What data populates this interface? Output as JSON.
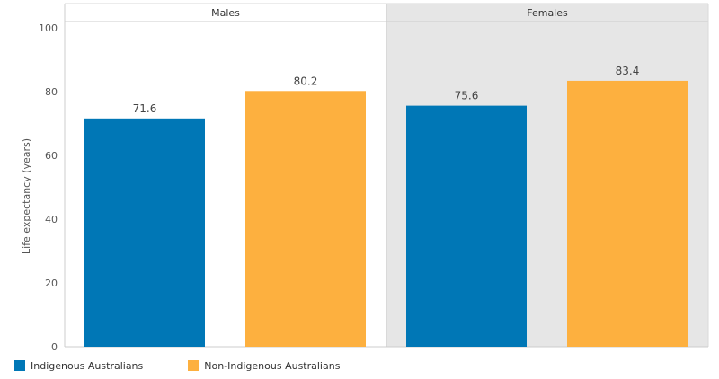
{
  "chart_data": {
    "type": "bar",
    "panels": [
      "Males",
      "Females"
    ],
    "categories": [
      "Indigenous Australians",
      "Non-Indigenous Australians"
    ],
    "series": [
      {
        "name": "Indigenous Australians",
        "values": [
          71.6,
          75.6
        ]
      },
      {
        "name": "Non-Indigenous Australians",
        "values": [
          80.2,
          83.4
        ]
      }
    ],
    "ylabel": "Life expectancy (years)",
    "ylim": [
      0,
      100
    ],
    "yticks": [
      0,
      20,
      40,
      60,
      80,
      100
    ],
    "data_labels": true,
    "legend_position": "bottom-left",
    "colors": {
      "Indigenous Australians": "#0077b6",
      "Non-Indigenous Australians": "#fdb03f",
      "females_panel_bg": "#e6e6e6",
      "males_panel_bg": "#ffffff"
    }
  },
  "legend": {
    "items": [
      {
        "label": "Indigenous Australians",
        "color": "#0077b6"
      },
      {
        "label": "Non-Indigenous Australians",
        "color": "#fdb03f"
      }
    ]
  }
}
